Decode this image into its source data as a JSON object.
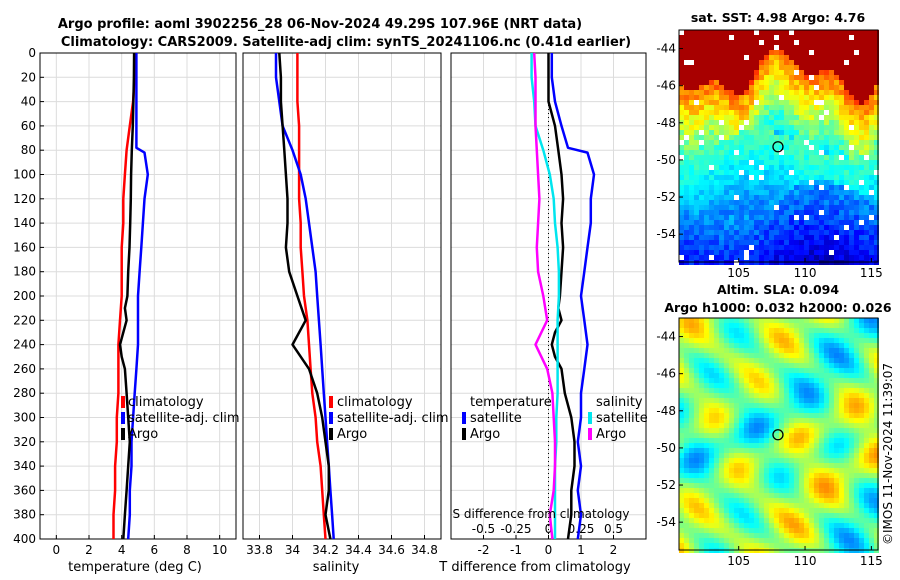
{
  "header": {
    "line1": "Argo profile: aoml 3902256_28 06-Nov-2024 49.29S 107.96E (NRT data)",
    "line2": "Climatology: CARS2009. Satellite-adj clim: synTS_20241106.nc (0.41d earlier)"
  },
  "sst_map": {
    "title": "sat. SST: 4.98 Argo: 4.76"
  },
  "sla_map": {
    "title1": "Altim. SLA: 0.094",
    "title2": "Argo h1000: 0.032 h2000: 0.026"
  },
  "watermark": "©IMOS 11-Nov-2024 11:39:07",
  "colors": {
    "climatology": "#ff0000",
    "satellite": "#0000ff",
    "argo": "#000000",
    "t_diff": "#00e5ee",
    "s_diff": "#ff00ff"
  },
  "chart_data": [
    {
      "id": "temperature",
      "type": "line",
      "xlabel": "temperature (deg C)",
      "xlim": [
        -1,
        11
      ],
      "xticks": [
        0,
        2,
        4,
        6,
        8,
        10
      ],
      "ylim": [
        0,
        400
      ],
      "yticks": [
        0,
        20,
        40,
        60,
        80,
        100,
        120,
        140,
        160,
        180,
        200,
        220,
        240,
        260,
        280,
        300,
        320,
        340,
        360,
        380,
        400
      ],
      "legend": [
        "climatology",
        "satellite-adj. clim",
        "Argo"
      ],
      "series": [
        {
          "name": "climatology",
          "color": "#ff0000",
          "depth": [
            0,
            20,
            40,
            60,
            80,
            100,
            120,
            140,
            160,
            180,
            200,
            220,
            240,
            250,
            260,
            280,
            300,
            320,
            340,
            360,
            380,
            400
          ],
          "values": [
            4.8,
            4.8,
            4.7,
            4.5,
            4.3,
            4.2,
            4.1,
            4.1,
            4.0,
            4.0,
            4.0,
            3.9,
            3.8,
            3.8,
            3.8,
            3.8,
            3.7,
            3.7,
            3.6,
            3.6,
            3.5,
            3.5
          ]
        },
        {
          "name": "satellite-adj. clim",
          "color": "#0000ff",
          "depth": [
            0,
            20,
            40,
            60,
            78,
            82,
            100,
            120,
            140,
            160,
            180,
            200,
            220,
            240,
            260,
            280,
            300,
            320,
            340,
            360,
            380,
            400
          ],
          "values": [
            4.9,
            4.9,
            4.9,
            4.9,
            4.9,
            5.4,
            5.6,
            5.4,
            5.3,
            5.2,
            5.1,
            5.0,
            5.0,
            5.0,
            4.9,
            4.8,
            4.7,
            4.6,
            4.6,
            4.5,
            4.5,
            4.4
          ]
        },
        {
          "name": "Argo",
          "color": "#000000",
          "depth": [
            0,
            20,
            40,
            60,
            80,
            100,
            120,
            140,
            160,
            180,
            200,
            210,
            220,
            230,
            240,
            250,
            260,
            280,
            300,
            320,
            340,
            360,
            380,
            400
          ],
          "values": [
            4.76,
            4.75,
            4.72,
            4.68,
            4.62,
            4.58,
            4.56,
            4.52,
            4.48,
            4.4,
            4.35,
            4.2,
            4.3,
            4.1,
            3.9,
            4.0,
            4.2,
            4.3,
            4.4,
            4.5,
            4.4,
            4.3,
            4.2,
            4.1
          ]
        }
      ]
    },
    {
      "id": "salinity",
      "type": "line",
      "xlabel": "salinity",
      "xlim": [
        33.7,
        34.9
      ],
      "xticks": [
        33.8,
        34,
        34.2,
        34.4,
        34.6,
        34.8
      ],
      "ylim": [
        0,
        400
      ],
      "legend": [
        "climatology",
        "satellite-adj. clim",
        "Argo"
      ],
      "series": [
        {
          "name": "climatology",
          "color": "#ff0000",
          "depth": [
            0,
            20,
            40,
            60,
            80,
            100,
            120,
            140,
            160,
            180,
            200,
            220,
            240,
            260,
            280,
            300,
            320,
            340,
            360,
            380,
            400
          ],
          "values": [
            34.03,
            34.03,
            34.03,
            34.04,
            34.04,
            34.04,
            34.04,
            34.05,
            34.05,
            34.06,
            34.07,
            34.09,
            34.1,
            34.11,
            34.12,
            34.14,
            34.15,
            34.17,
            34.18,
            34.19,
            34.2
          ]
        },
        {
          "name": "satellite-adj. clim",
          "color": "#0000ff",
          "depth": [
            0,
            20,
            40,
            60,
            80,
            100,
            120,
            140,
            160,
            180,
            200,
            220,
            240,
            260,
            280,
            300,
            320,
            340,
            360,
            380,
            400
          ],
          "values": [
            33.9,
            33.9,
            33.92,
            33.94,
            34.0,
            34.05,
            34.08,
            34.1,
            34.12,
            34.14,
            34.15,
            34.16,
            34.17,
            34.18,
            34.19,
            34.2,
            34.21,
            34.22,
            34.23,
            34.24,
            34.25
          ]
        },
        {
          "name": "Argo",
          "color": "#000000",
          "depth": [
            0,
            20,
            40,
            60,
            80,
            100,
            120,
            140,
            160,
            180,
            200,
            220,
            240,
            260,
            280,
            300,
            320,
            340,
            360,
            380,
            400
          ],
          "values": [
            33.92,
            33.93,
            33.93,
            33.94,
            33.95,
            33.96,
            33.97,
            33.97,
            33.96,
            33.98,
            34.03,
            34.08,
            34.0,
            34.1,
            34.15,
            34.18,
            34.2,
            34.22,
            34.22,
            34.2,
            34.23
          ]
        }
      ]
    },
    {
      "id": "difference",
      "type": "line",
      "xlabel": "T difference from climatology",
      "xlim": [
        -3,
        3
      ],
      "xticks": [
        -2,
        -1,
        0,
        1,
        2
      ],
      "s_axis_label": "S difference from climatology",
      "s_ticks": [
        "-0.5",
        "-0.25",
        "0",
        "0.25",
        "0.5"
      ],
      "ylim": [
        0,
        400
      ],
      "legend_left": {
        "title": "temperature",
        "items": [
          "satellite",
          "Argo"
        ]
      },
      "legend_right": {
        "title": "salinity",
        "items": [
          "satellite",
          "Argo"
        ]
      },
      "series": [
        {
          "name": "T satellite - clim",
          "color": "#0000ff",
          "depth": [
            0,
            20,
            40,
            60,
            78,
            82,
            100,
            120,
            140,
            160,
            180,
            200,
            220,
            240,
            260,
            280,
            300,
            320,
            340,
            360,
            380,
            400
          ],
          "values": [
            0.1,
            0.1,
            0.2,
            0.4,
            0.6,
            1.2,
            1.4,
            1.3,
            1.3,
            1.2,
            1.1,
            1.0,
            1.1,
            1.2,
            1.1,
            1.0,
            1.0,
            0.9,
            1.0,
            0.9,
            1.0,
            0.9
          ]
        },
        {
          "name": "T Argo - clim",
          "color": "#000000",
          "depth": [
            0,
            20,
            40,
            60,
            80,
            100,
            120,
            140,
            160,
            180,
            200,
            210,
            220,
            230,
            240,
            250,
            260,
            280,
            300,
            320,
            340,
            360,
            380,
            400
          ],
          "values": [
            0.0,
            0.0,
            0.0,
            0.2,
            0.3,
            0.4,
            0.45,
            0.4,
            0.45,
            0.4,
            0.35,
            0.3,
            0.4,
            0.2,
            0.1,
            0.2,
            0.4,
            0.5,
            0.7,
            0.8,
            0.8,
            0.7,
            0.7,
            0.6
          ]
        },
        {
          "name": "S satellite - clim",
          "color": "#00e5ee",
          "depth": [
            0,
            20,
            40,
            60,
            80,
            100,
            120,
            140,
            160,
            180,
            200,
            220,
            240,
            260,
            280,
            300,
            320,
            340,
            360,
            380,
            400
          ],
          "values": [
            -0.13,
            -0.13,
            -0.11,
            -0.1,
            -0.04,
            0.01,
            0.04,
            0.05,
            0.07,
            0.08,
            0.08,
            0.07,
            0.07,
            0.07,
            0.07,
            0.06,
            0.06,
            0.05,
            0.05,
            0.05,
            0.05
          ]
        },
        {
          "name": "S Argo - clim",
          "color": "#ff00ff",
          "depth": [
            0,
            20,
            40,
            60,
            80,
            100,
            120,
            140,
            160,
            180,
            200,
            220,
            240,
            260,
            280,
            300,
            320,
            340,
            360,
            380,
            400
          ],
          "values": [
            -0.11,
            -0.1,
            -0.1,
            -0.1,
            -0.09,
            -0.08,
            -0.07,
            -0.08,
            -0.09,
            -0.08,
            -0.04,
            -0.01,
            -0.1,
            -0.01,
            0.03,
            0.04,
            0.05,
            0.05,
            0.04,
            0.01,
            0.03
          ]
        }
      ]
    },
    {
      "id": "sst_map",
      "type": "heatmap",
      "title": "sat. SST: 4.98 Argo: 4.76",
      "xticks": [
        105,
        110,
        115
      ],
      "yticks": [
        -44,
        -46,
        -48,
        -50,
        -52,
        -54
      ],
      "xlim": [
        100.5,
        115.5
      ],
      "ylim": [
        -55.5,
        -43
      ],
      "argo_position": {
        "lon": 107.96,
        "lat": -49.29
      }
    },
    {
      "id": "sla_map",
      "type": "heatmap",
      "title": "Altim. SLA: 0.094",
      "xticks": [
        105,
        110,
        115
      ],
      "yticks": [
        -44,
        -46,
        -48,
        -50,
        -52,
        -54
      ],
      "xlim": [
        100.5,
        115.5
      ],
      "ylim": [
        -55.5,
        -43
      ],
      "argo_position": {
        "lon": 107.96,
        "lat": -49.29
      }
    }
  ]
}
